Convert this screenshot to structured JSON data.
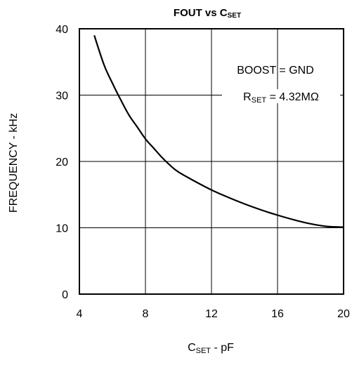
{
  "chart_data": {
    "type": "line",
    "title": {
      "main": "FOUT vs C",
      "sub": "SET"
    },
    "xlabel": {
      "main": "C",
      "sub": "SET",
      "rest": " - pF"
    },
    "ylabel": "FREQUENCY - kHz",
    "xlim": [
      4,
      20
    ],
    "ylim": [
      0,
      40
    ],
    "xticks": [
      "4",
      "8",
      "12",
      "16",
      "20"
    ],
    "yticks": [
      "0",
      "10",
      "20",
      "30",
      "40"
    ],
    "grid": true,
    "annotations": {
      "boost": "BOOST = GND",
      "rset_main": "R",
      "rset_sub": "SET",
      "rset_rest": " = 4.32MΩ"
    },
    "series": [
      {
        "x": [
          4.9,
          5.5,
          6.0,
          6.5,
          7.0,
          7.5,
          8.0,
          8.5,
          9.0,
          9.5,
          10.0,
          11.0,
          12.0,
          13.0,
          14.0,
          15.0,
          16.0,
          17.0,
          18.0,
          19.0,
          20.0
        ],
        "y": [
          39.0,
          34.5,
          31.8,
          29.3,
          27.0,
          25.2,
          23.4,
          22.0,
          20.6,
          19.4,
          18.4,
          17.0,
          15.7,
          14.6,
          13.6,
          12.7,
          11.9,
          11.2,
          10.6,
          10.2,
          10.1
        ]
      }
    ]
  },
  "colors": {
    "line": "#000000",
    "grid": "#000000",
    "background": "#ffffff"
  }
}
